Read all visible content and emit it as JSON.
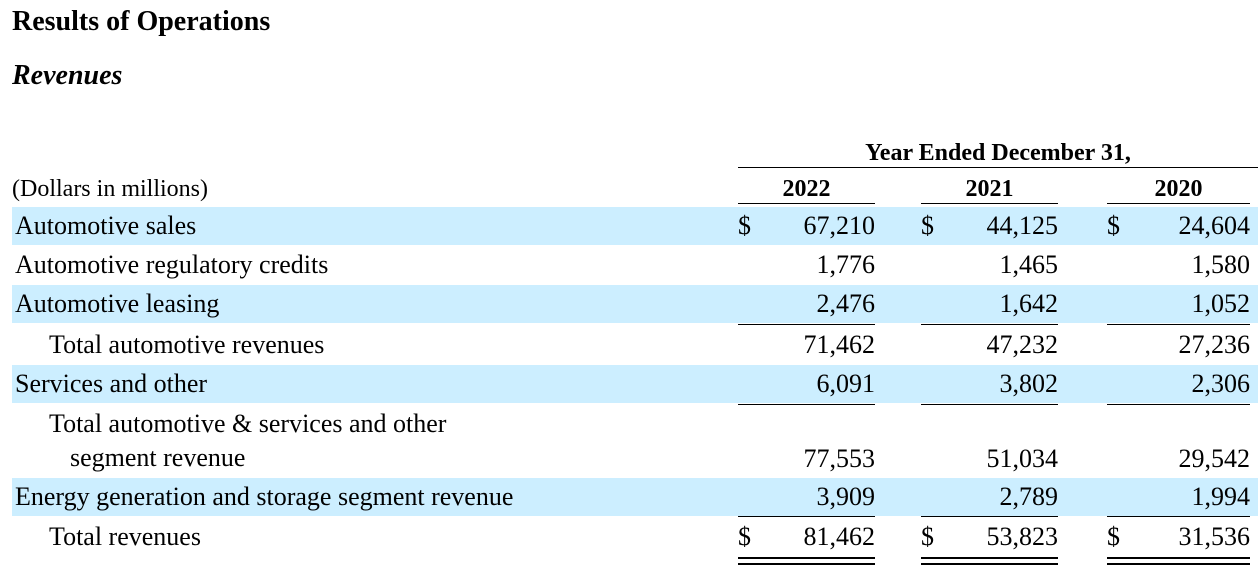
{
  "document": {
    "title": "Results of Operations",
    "subtitle": "Revenues",
    "units_label": "(Dollars in millions)",
    "period_header": "Year Ended December 31,",
    "years": [
      "2022",
      "2021",
      "2020"
    ]
  },
  "rows": [
    {
      "label": "Automotive sales",
      "dollar": "$",
      "values": [
        "67,210",
        "44,125",
        "24,604"
      ]
    },
    {
      "label": "Automotive regulatory credits",
      "values": [
        "1,776",
        "1,465",
        "1,580"
      ]
    },
    {
      "label": "Automotive leasing",
      "values": [
        "2,476",
        "1,642",
        "1,052"
      ]
    },
    {
      "label": "Total automotive revenues",
      "values": [
        "71,462",
        "47,232",
        "27,236"
      ]
    },
    {
      "label": "Services and other",
      "values": [
        "6,091",
        "3,802",
        "2,306"
      ]
    },
    {
      "label_line1": "Total automotive & services and other",
      "label_line2": "segment revenue",
      "values": [
        "77,553",
        "51,034",
        "29,542"
      ]
    },
    {
      "label": "Energy generation and storage segment revenue",
      "values": [
        "3,909",
        "2,789",
        "1,994"
      ]
    },
    {
      "label": "Total revenues",
      "dollar": "$",
      "values": [
        "81,462",
        "53,823",
        "31,536"
      ]
    }
  ]
}
